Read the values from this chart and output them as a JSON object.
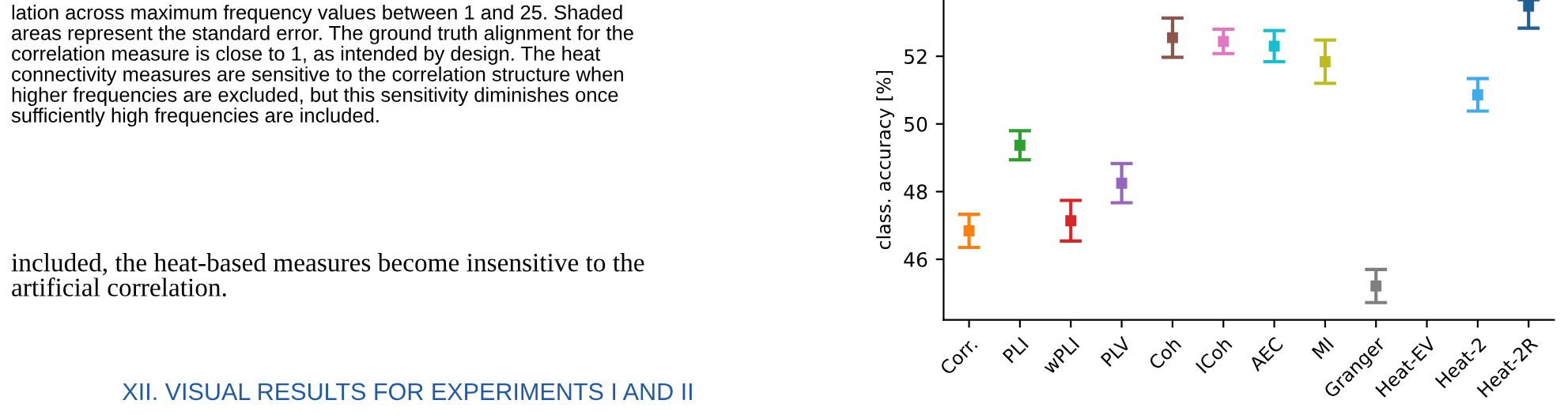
{
  "chart_data": {
    "type": "scatter",
    "ylabel": "class. accuracy [%]",
    "categories": [
      "Corr.",
      "PLI",
      "wPLI",
      "PLV",
      "Coh",
      "ICoh",
      "AEC",
      "MI",
      "Granger",
      "Heat-EV",
      "Heat-2",
      "Heat-2R"
    ],
    "values": [
      46.84,
      49.37,
      47.14,
      48.25,
      52.55,
      52.44,
      52.3,
      51.84,
      45.21,
      null,
      50.86,
      53.48
    ],
    "errors": [
      0.49,
      0.43,
      0.6,
      0.58,
      0.58,
      0.36,
      0.46,
      0.64,
      0.49,
      null,
      0.48,
      [
        52.83,
        53.67
      ]
    ],
    "colors": [
      "#ff7f0e",
      "#2ca02c",
      "#d62728",
      "#9467bd",
      "#8c564b",
      "#e377c2",
      "#17becf",
      "#bcbd22",
      "#7f7f7f",
      "#1f77b4",
      "#3daee9",
      "#1f5f95"
    ],
    "marker": "square",
    "grid": false,
    "ylim": [
      44.21,
      53.67
    ],
    "yticks": [
      46,
      48,
      50,
      52
    ],
    "annotations": [
      "lation across maximum frequency values between 1 and 25. Shaded\nareas represent the standard error. The ground truth alignment for the\ncorrelation measure is close to 1, as intended by design. The heat\nconnectivity measures are sensitive to the correlation structure when\nhigher frequencies are excluded, but this sensitivity diminishes once\nsufficiently high frequencies are included.",
      "included, the heat-based measures become insensitive to the\nartificial correlation.",
      "XII. VISUAL RESULTS FOR EXPERIMENTS I AND II"
    ]
  }
}
